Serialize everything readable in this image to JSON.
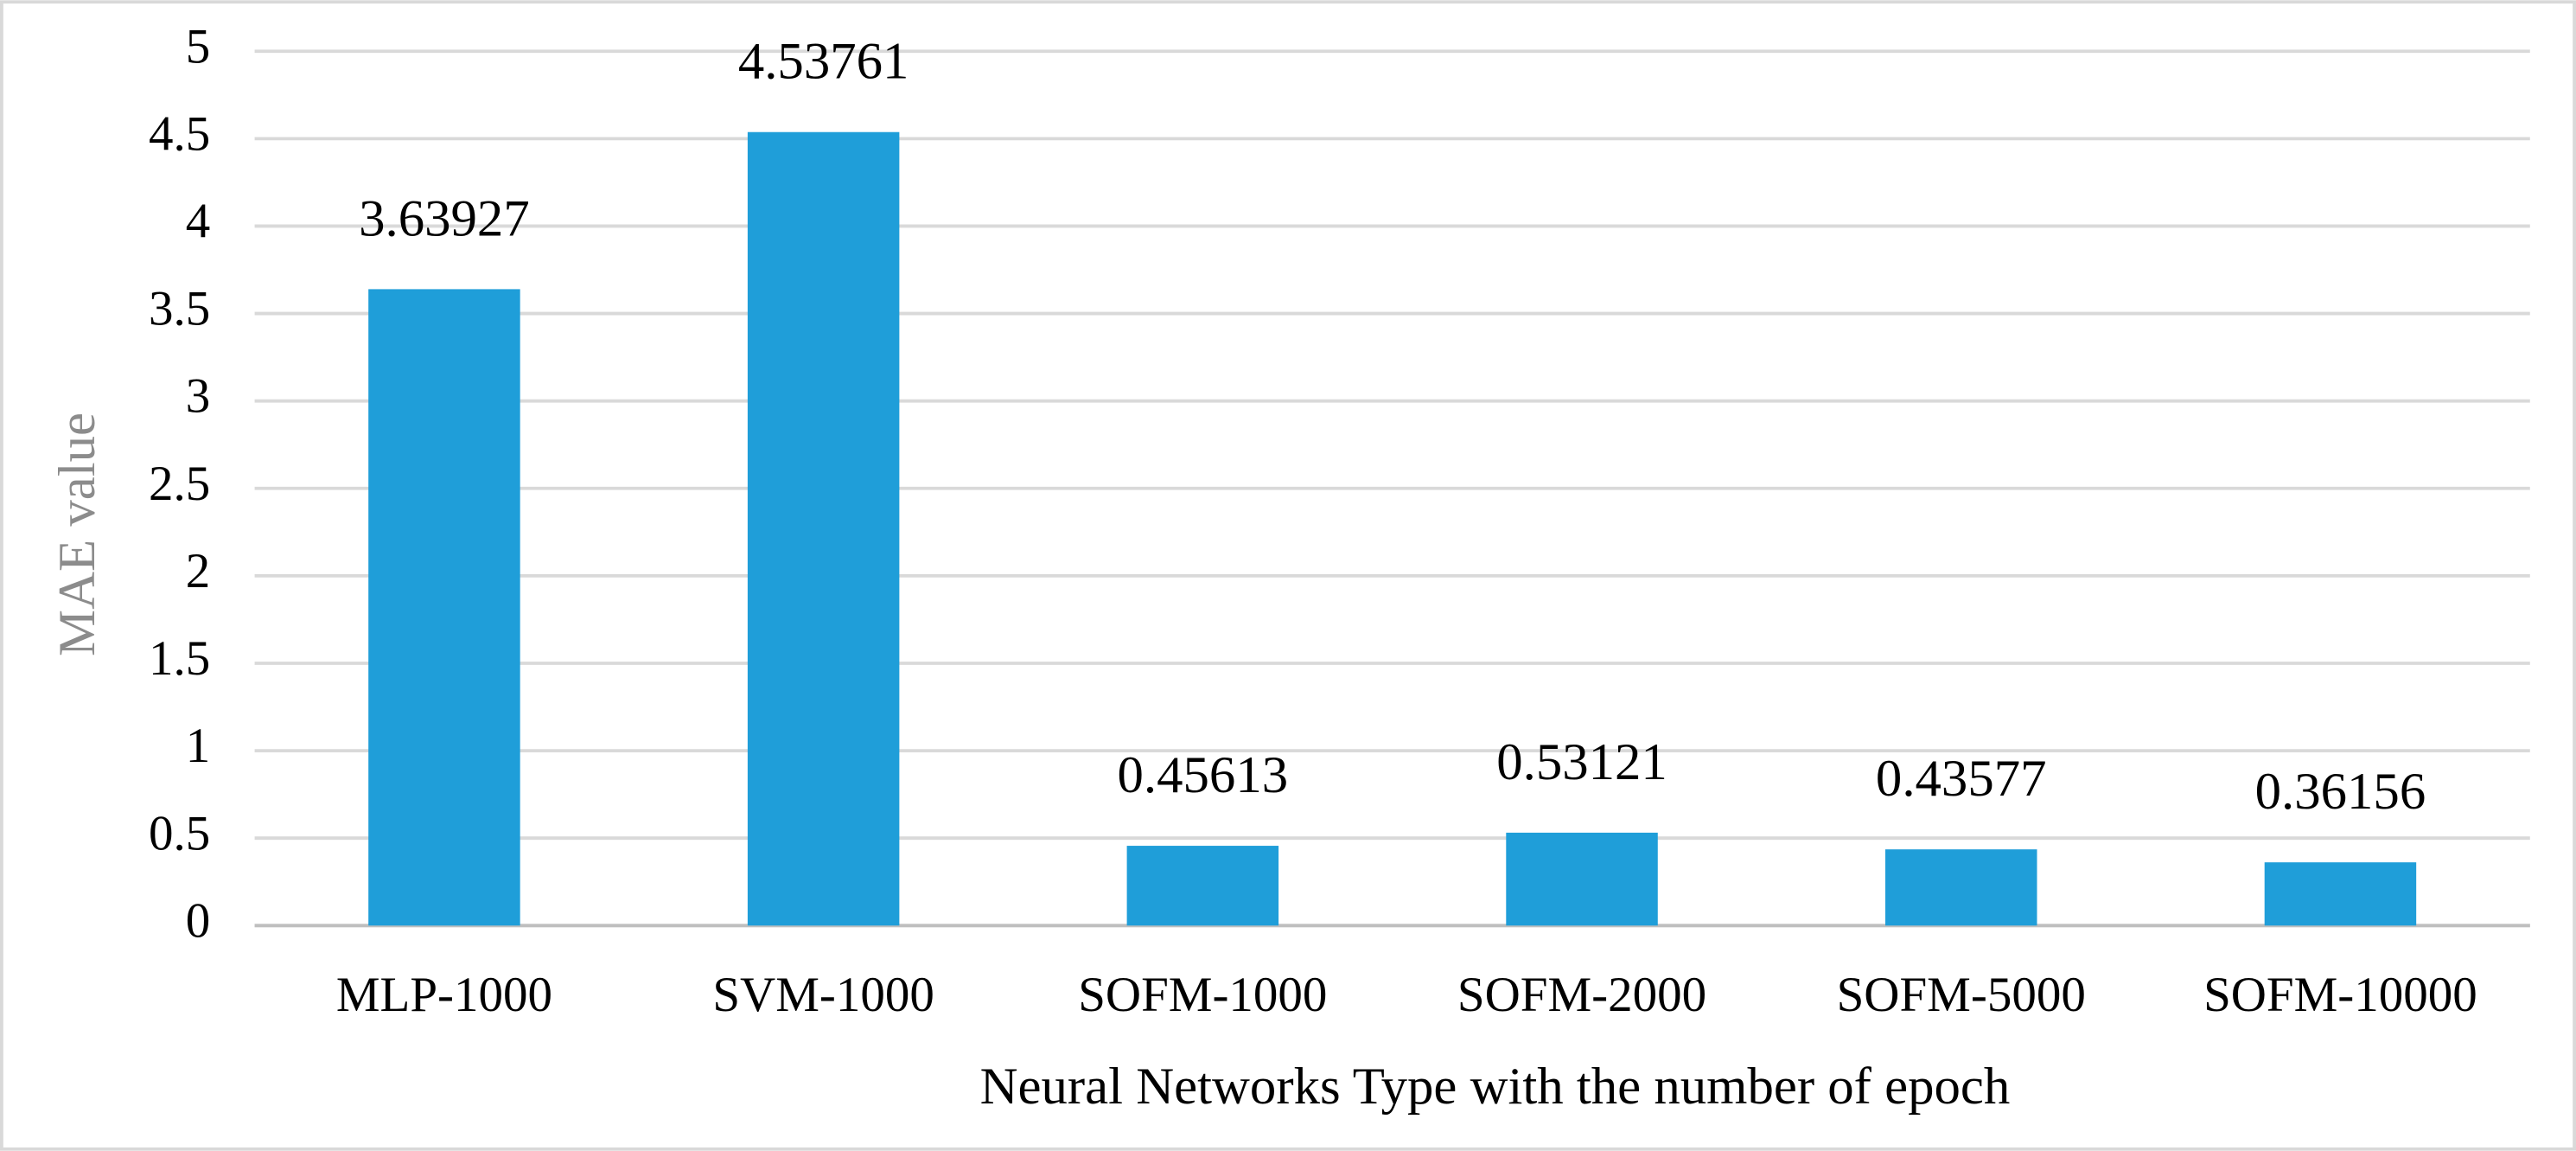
{
  "chart_data": {
    "type": "bar",
    "x_label": "Neural Networks Type with the number of epoch",
    "y_label": "MAE value",
    "categories": [
      "MLP-1000",
      "SVM-1000",
      "SOFM-1000",
      "SOFM-2000",
      "SOFM-5000",
      "SOFM-10000"
    ],
    "values": [
      3.63927,
      4.53761,
      0.45613,
      0.53121,
      0.43577,
      0.36156
    ],
    "color": "#1f9ed9",
    "ylim": [
      0,
      5
    ],
    "yticks": [
      0,
      0.5,
      1,
      1.5,
      2,
      2.5,
      3,
      3.5,
      4,
      4.5,
      5
    ],
    "grid": true
  }
}
